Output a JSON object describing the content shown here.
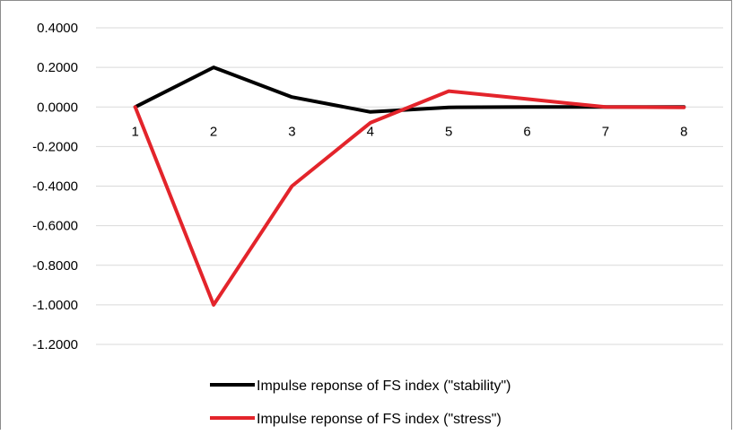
{
  "chart_data": {
    "type": "line",
    "categories": [
      "1",
      "2",
      "3",
      "4",
      "5",
      "6",
      "7",
      "8"
    ],
    "series": [
      {
        "name": "Impulse reponse of FS index (\"stability\")",
        "color": "#000000",
        "values": [
          0.0,
          0.2,
          0.05,
          -0.025,
          -0.002,
          0.0,
          0.0,
          0.0
        ]
      },
      {
        "name": "Impulse reponse of FS index (\"stress\")",
        "color": "#e3242b",
        "values": [
          0.0,
          -1.0,
          -0.4,
          -0.08,
          0.08,
          0.04,
          0.0,
          -0.002
        ]
      }
    ],
    "y_ticks": [
      "0.4000",
      "0.2000",
      "0.0000",
      "-0.2000",
      "-0.4000",
      "-0.6000",
      "-0.8000",
      "-1.0000",
      "-1.2000"
    ],
    "ylim": [
      -1.2,
      0.4
    ],
    "grid": "horizontal",
    "legend_position": "bottom",
    "title": "",
    "xlabel": "",
    "ylabel": ""
  }
}
